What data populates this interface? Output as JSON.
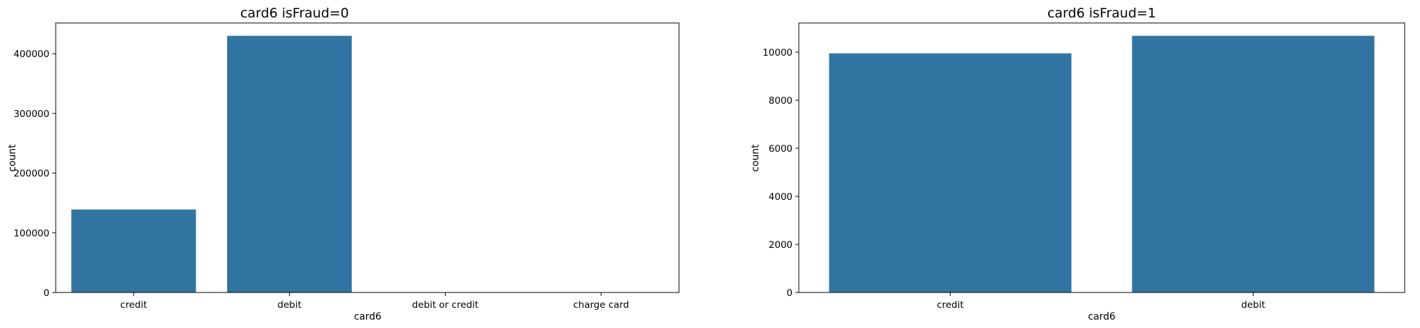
{
  "chart_data": [
    {
      "type": "bar",
      "title": "card6 isFraud=0",
      "xlabel": "card6",
      "ylabel": "count",
      "categories": [
        "credit",
        "debit",
        "debit or credit",
        "charge card"
      ],
      "values": [
        139000,
        430000,
        30,
        15
      ],
      "ylim": [
        0,
        451500
      ],
      "yticks": [
        0,
        100000,
        200000,
        300000,
        400000
      ],
      "ytick_labels": [
        "0",
        "100000",
        "200000",
        "300000",
        "400000"
      ],
      "bar_color": "#3274a1",
      "grid": false,
      "legend": "none"
    },
    {
      "type": "bar",
      "title": "card6 isFraud=1",
      "xlabel": "card6",
      "ylabel": "count",
      "categories": [
        "credit",
        "debit"
      ],
      "values": [
        9950,
        10680
      ],
      "ylim": [
        0,
        11214
      ],
      "yticks": [
        0,
        2000,
        4000,
        6000,
        8000,
        10000
      ],
      "ytick_labels": [
        "0",
        "2000",
        "4000",
        "6000",
        "8000",
        "10000"
      ],
      "bar_color": "#3274a1",
      "grid": false,
      "legend": "none"
    }
  ]
}
